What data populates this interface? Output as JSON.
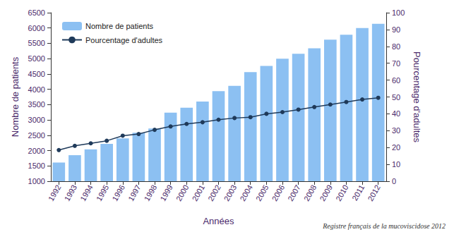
{
  "chart_data": {
    "type": "bar",
    "categories": [
      "1992",
      "1993",
      "1994",
      "1995",
      "1996",
      "1997",
      "1998",
      "1999",
      "2000",
      "2001",
      "2002",
      "2003",
      "2004",
      "2005",
      "2006",
      "2007",
      "2008",
      "2009",
      "2010",
      "2011",
      "2012"
    ],
    "series": [
      {
        "name": "Nombre de patients",
        "type": "bar",
        "color": "#8cc0f2",
        "values": [
          1610,
          1850,
          2040,
          2220,
          2400,
          2580,
          2720,
          3240,
          3400,
          3600,
          3940,
          4110,
          4560,
          4760,
          5000,
          5160,
          5340,
          5620,
          5780,
          6000,
          6140
        ]
      },
      {
        "name": "Pourcentage d'adultes",
        "type": "line",
        "axis": "y2",
        "color": "#1f3a5a",
        "marker": "circle",
        "values": [
          18.5,
          21,
          22.5,
          24,
          27,
          28,
          30.5,
          32.5,
          34,
          35,
          36.5,
          37.5,
          38,
          40,
          41,
          42.5,
          44,
          45.5,
          47,
          48.5,
          49.5
        ]
      }
    ],
    "xlabel": "Années",
    "ylabel": "Nombre de patients",
    "y2label": "Pourcentage d'adultes",
    "ylim": [
      1000,
      6500
    ],
    "yticks": [
      1000,
      1500,
      2000,
      2500,
      3000,
      3500,
      4000,
      4500,
      5000,
      5500,
      6000,
      6500
    ],
    "y2lim": [
      0,
      100
    ],
    "y2ticks": [
      0,
      10,
      20,
      30,
      40,
      50,
      60,
      70,
      80,
      90,
      100
    ],
    "grid": false,
    "legend": "upper left",
    "annotations": [
      "Registre français de la mucoviscidose 2012"
    ]
  }
}
